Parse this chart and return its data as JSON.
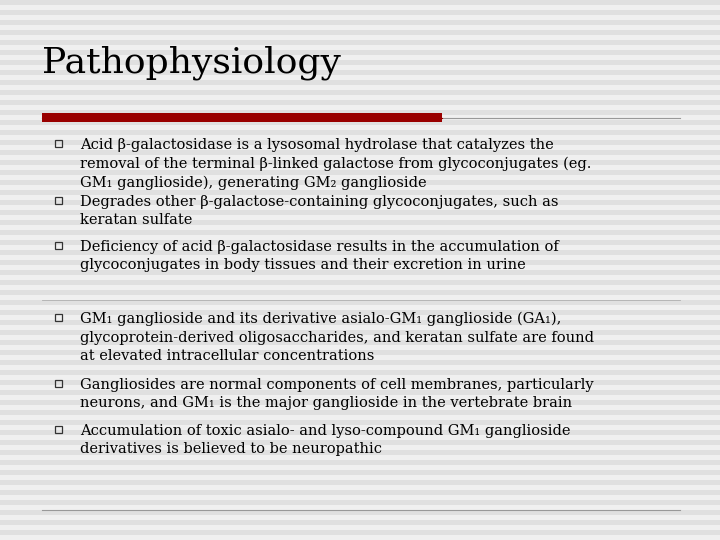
{
  "title": "Pathophysiology",
  "title_fontsize": 26,
  "body_fontsize": 10.5,
  "background_color": "#f0f0f0",
  "stripe_color": "#e0e0e0",
  "title_color": "#000000",
  "text_color": "#000000",
  "red_bar_color": "#990000",
  "bullet_color": "#333333",
  "divider_color": "#999999",
  "fig_width": 7.2,
  "fig_height": 5.4,
  "dpi": 100,
  "section1_bullets": [
    "Acid β-galactosidase is a lysosomal hydrolase that catalyzes the\nremoval of the terminal β-linked galactose from glycoconjugates (eg.\nGM₁ ganglioside), generating GM₂ ganglioside",
    "Degrades other β-galactose-containing glycoconjugates, such as\nkeratan sulfate",
    "Deficiency of acid β-galactosidase results in the accumulation of\nglycoconjugates in body tissues and their excretion in urine"
  ],
  "section2_bullets": [
    "GM₁ ganglioside and its derivative asialo-GM₁ ganglioside (GA₁),\nglycoprotein-derived oligosaccharides, and keratan sulfate are found\nat elevated intracellular concentrations",
    "Gangliosides are normal components of cell membranes, particularly\nneurons, and GM₁ is the major ganglioside in the vertebrate brain",
    "Accumulation of toxic asialo- and lyso-compound GM₁ ganglioside\nderivatives is believed to be neuropathic"
  ]
}
